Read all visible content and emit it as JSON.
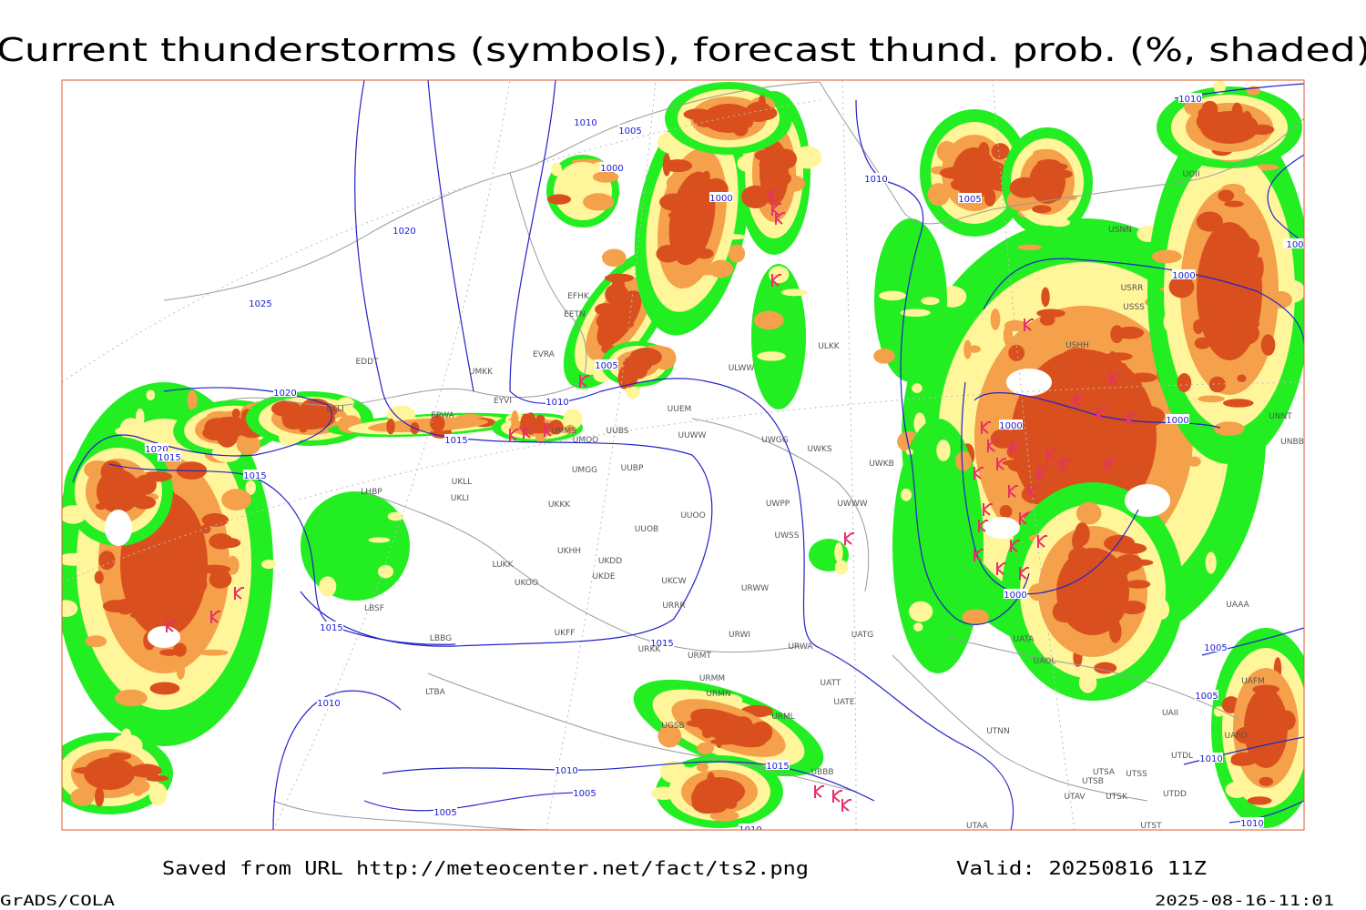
{
  "title": "Current thunderstorms (symbols), forecast thund. prob. (%, shaded)",
  "footer": {
    "source": "Saved from URL http://meteocenter.net/fact/ts2.png",
    "valid": "Valid: 20250816 11Z",
    "software": "GrADS/COLA",
    "timestamp": "2025-08-16-11:01"
  },
  "isobar_labels": [
    "1010",
    "1005",
    "1000",
    "1000",
    "1010",
    "1010",
    "1005",
    "1000",
    "1000",
    "1000",
    "1000",
    "1020",
    "1025",
    "1005",
    "1010",
    "1020",
    "1020",
    "1015",
    "1015",
    "1015",
    "1015",
    "1015",
    "1010",
    "1010",
    "1005",
    "1005",
    "1015",
    "1010",
    "1005",
    "1005",
    "1010",
    "1010",
    "100"
  ],
  "station_labels": [
    "EFHK",
    "EETN",
    "EVRA",
    "EDDT",
    "UMKK",
    "EYVI",
    "EPWA",
    "UMMS",
    "UUBS",
    "UMOO",
    "UUEM",
    "UUWW",
    "UWGG",
    "UWKS",
    "UWKB",
    "UWWW",
    "UWPP",
    "UMGG",
    "UUBP",
    "UKLL",
    "UKLI",
    "LHBP",
    "UKKK",
    "UUOO",
    "UUOB",
    "UWSS",
    "UKHH",
    "UKDD",
    "LUKK",
    "UKOO",
    "UKDE",
    "UKCW",
    "URWW",
    "URRR",
    "LBSF",
    "UKFF",
    "LBBG",
    "URWI",
    "URKK",
    "URMT",
    "URWA",
    "UATG",
    "URMM",
    "URMN",
    "UATT",
    "UATE",
    "LTBA",
    "UGSB",
    "URML",
    "UTNN",
    "UTSA",
    "UTSB",
    "UTSS",
    "UTAV",
    "UTSK",
    "UTAA",
    "UBBB",
    "ULLI",
    "ULKK",
    "ULWW",
    "USNN",
    "USRR",
    "USSS",
    "USHH",
    "UOII",
    "UNNT",
    "UNBB",
    "UATA",
    "UAOL",
    "UAAA",
    "UAFM",
    "UAII",
    "UAFO",
    "UTDL",
    "UTDD",
    "UTST"
  ]
}
